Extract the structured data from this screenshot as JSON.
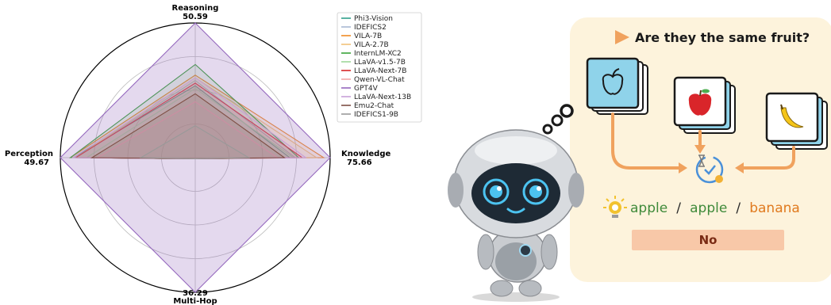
{
  "chart_data": {
    "type": "radar",
    "axes": [
      {
        "label": "Reasoning",
        "max": 50.59,
        "max_label": "50.59",
        "position": "top"
      },
      {
        "label": "Knowledge",
        "max": 75.66,
        "max_label": "75.66",
        "position": "right"
      },
      {
        "label": "Multi-Hop",
        "max": 36.29,
        "max_label": "36.29",
        "position": "bottom"
      },
      {
        "label": "Perception",
        "max": 49.67,
        "max_label": "49.67",
        "position": "left"
      }
    ],
    "legend_position": "top-right",
    "grid": true,
    "series": [
      {
        "name": "Phi3-Vision",
        "color": "#2f9e8a",
        "values": [
          27,
          53,
          0.3,
          45
        ]
      },
      {
        "name": "IDEFICS2",
        "color": "#a9b7d3",
        "values": [
          29,
          56,
          0.3,
          44
        ]
      },
      {
        "name": "VILA-7B",
        "color": "#f08a24",
        "values": [
          31,
          72,
          0.3,
          46
        ]
      },
      {
        "name": "VILA-2.7B",
        "color": "#f2c27a",
        "values": [
          30,
          68,
          0.3,
          44
        ]
      },
      {
        "name": "InternLM-XC2",
        "color": "#3aa33a",
        "values": [
          35,
          58,
          0.3,
          46
        ]
      },
      {
        "name": "LLaVA-v1.5-7B",
        "color": "#9fd89a",
        "values": [
          26,
          55,
          0.3,
          40
        ]
      },
      {
        "name": "LLaVA-Next-7B",
        "color": "#d62728",
        "values": [
          28,
          60,
          0.3,
          44
        ]
      },
      {
        "name": "Qwen-VL-Chat",
        "color": "#f2a6a6",
        "values": [
          21,
          46,
          0.3,
          36
        ]
      },
      {
        "name": "GPT4V",
        "color": "#9467bd",
        "values": [
          50.59,
          75.66,
          36.29,
          49.67
        ]
      },
      {
        "name": "LLaVA-Next-13B",
        "color": "#c8a0d8",
        "values": [
          30,
          62,
          0.3,
          45
        ]
      },
      {
        "name": "Emu2-Chat",
        "color": "#7f4f45",
        "values": [
          24,
          50,
          0.3,
          38
        ]
      },
      {
        "name": "IDEFICS1-9B",
        "color": "#999999",
        "values": [
          12,
          30,
          0.3,
          20
        ]
      }
    ]
  },
  "illustration": {
    "title": "Are they the same fruit?",
    "labels": [
      "apple",
      "/",
      "apple",
      "/",
      "banana"
    ],
    "answer": "No",
    "colors": {
      "apple": "#3f8a3a",
      "banana": "#e07a1f",
      "slash": "#2b2b2b",
      "panel": "#fdf3dc",
      "answer_box": "#f8c8a8",
      "arrow": "#f0a25e",
      "title_arrow": "#f0a25e"
    }
  }
}
